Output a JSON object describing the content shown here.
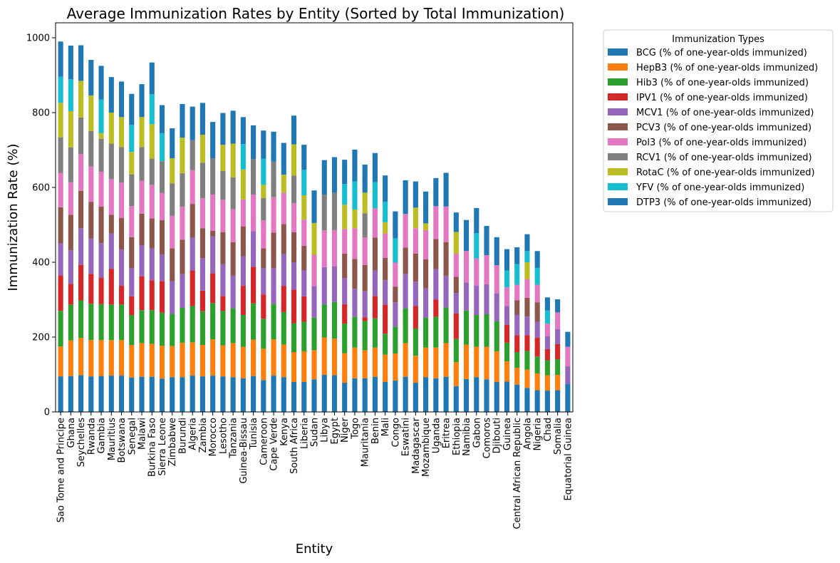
{
  "chart_data": {
    "type": "bar",
    "stacked": true,
    "title": "Average Immunization Rates by Entity (Sorted by Total Immunization)",
    "xlabel": "Entity",
    "ylabel": "Immunization Rate (%)",
    "ylim": [
      0,
      1040
    ],
    "yticks": [
      0,
      200,
      400,
      600,
      800,
      1000
    ],
    "grid": false,
    "legend": {
      "title": "Immunization Types",
      "placement": "outside-top-right"
    },
    "categories": [
      "Sao Tome and Principe",
      "Ghana",
      "Seychelles",
      "Rwanda",
      "Gambia",
      "Mauritius",
      "Botswana",
      "Senegal",
      "Malawi",
      "Burkina Faso",
      "Sierra Leone",
      "Zimbabwe",
      "Burundi",
      "Algeria",
      "Zambia",
      "Morocco",
      "Lesotho",
      "Tanzania",
      "Guinea-Bissau",
      "Tunisia",
      "Cameroon",
      "Cape Verde",
      "Kenya",
      "South Africa",
      "Liberia",
      "Sudan",
      "Libya",
      "Egypt",
      "Niger",
      "Togo",
      "Mauritania",
      "Benin",
      "Mali",
      "Congo",
      "Eswatini",
      "Madagascar",
      "Mozambique",
      "Uganda",
      "Eritrea",
      "Ethiopia",
      "Namibia",
      "Gabon",
      "Comoros",
      "Djibouti",
      "Guinea",
      "Central African Republic",
      "Angola",
      "Nigeria",
      "Chad",
      "Somalia",
      "Equatorial Guinea"
    ],
    "series": [
      {
        "name": "BCG (% of one-year-olds immunized)",
        "color": "#1f77b4",
        "values": [
          95,
          96,
          98,
          95,
          96,
          97,
          97,
          92,
          94,
          94,
          89,
          93,
          93,
          97,
          95,
          97,
          95,
          93,
          90,
          96,
          85,
          97,
          93,
          80,
          80,
          87,
          99,
          98,
          78,
          90,
          90,
          94,
          80,
          84,
          94,
          78,
          93,
          90,
          94,
          69,
          88,
          93,
          87,
          80,
          81,
          73,
          64,
          58,
          57,
          58,
          75
        ]
      },
      {
        "name": "HepB3 (% of one-year-olds immunized)",
        "color": "#ff7f0e",
        "values": [
          80,
          95,
          100,
          97,
          96,
          95,
          95,
          87,
          90,
          88,
          88,
          83,
          92,
          89,
          84,
          97,
          83,
          91,
          84,
          97,
          84,
          97,
          87,
          80,
          82,
          78,
          100,
          98,
          79,
          82,
          75,
          78,
          73,
          72,
          90,
          72,
          79,
          82,
          90,
          64,
          92,
          81,
          87,
          82,
          54,
          45,
          49,
          45,
          41,
          41,
          0
        ]
      },
      {
        "name": "Hib3 (% of one-year-olds immunized)",
        "color": "#2ca02c",
        "values": [
          95,
          96,
          100,
          97,
          96,
          95,
          95,
          80,
          88,
          90,
          88,
          86,
          93,
          97,
          90,
          97,
          92,
          93,
          85,
          97,
          80,
          95,
          87,
          77,
          79,
          87,
          88,
          98,
          79,
          82,
          78,
          78,
          56,
          72,
          93,
          73,
          80,
          82,
          95,
          62,
          91,
          85,
          87,
          80,
          50,
          42,
          50,
          45,
          40,
          42,
          0
        ]
      },
      {
        "name": "IPV1 (% of one-year-olds immunized)",
        "color": "#d62728",
        "values": [
          95,
          55,
          95,
          80,
          70,
          95,
          50,
          50,
          90,
          80,
          85,
          0,
          0,
          95,
          55,
          80,
          40,
          0,
          78,
          98,
          65,
          0,
          70,
          90,
          68,
          0,
          0,
          0,
          52,
          0,
          10,
          60,
          78,
          0,
          0,
          60,
          0,
          46,
          0,
          68,
          0,
          0,
          0,
          0,
          48,
          45,
          42,
          50,
          30,
          40,
          0
        ]
      },
      {
        "name": "MCV1 (% of one-year-olds immunized)",
        "color": "#9467bd",
        "values": [
          85,
          90,
          98,
          95,
          93,
          95,
          97,
          75,
          83,
          85,
          71,
          87,
          90,
          88,
          87,
          98,
          85,
          87,
          79,
          95,
          70,
          95,
          85,
          73,
          70,
          84,
          100,
          96,
          70,
          75,
          70,
          68,
          65,
          65,
          92,
          65,
          78,
          82,
          85,
          55,
          75,
          78,
          80,
          75,
          50,
          55,
          50,
          43,
          35,
          40,
          47
        ]
      },
      {
        "name": "PCV3 (% of one-year-olds immunized)",
        "color": "#8c564b",
        "values": [
          97,
          95,
          100,
          97,
          98,
          50,
          84,
          83,
          85,
          80,
          92,
          88,
          92,
          90,
          80,
          15,
          85,
          90,
          80,
          0,
          53,
          95,
          80,
          80,
          65,
          0,
          0,
          0,
          65,
          80,
          70,
          88,
          60,
          42,
          70,
          75,
          78,
          80,
          90,
          43,
          0,
          0,
          0,
          0,
          0,
          38,
          50,
          52,
          0,
          0,
          0
        ]
      },
      {
        "name": "Pol3 (% of one-year-olds immunized)",
        "color": "#e377c2",
        "values": [
          92,
          87,
          98,
          95,
          93,
          95,
          95,
          83,
          88,
          90,
          72,
          87,
          88,
          90,
          80,
          97,
          87,
          88,
          72,
          98,
          75,
          95,
          84,
          78,
          70,
          84,
          98,
          96,
          66,
          82,
          73,
          78,
          65,
          64,
          90,
          68,
          78,
          88,
          95,
          62,
          84,
          73,
          78,
          75,
          50,
          42,
          50,
          47,
          33,
          45,
          52
        ]
      },
      {
        "name": "RCV1 (% of one-year-olds immunized)",
        "color": "#7f7f7f",
        "values": [
          95,
          93,
          98,
          95,
          88,
          95,
          95,
          85,
          90,
          70,
          85,
          87,
          90,
          80,
          95,
          97,
          77,
          85,
          0,
          95,
          60,
          95,
          0,
          74,
          0,
          0,
          96,
          100,
          0,
          0,
          65,
          0,
          0,
          0,
          0,
          0,
          0,
          0,
          0,
          0,
          0,
          0,
          0,
          0,
          0,
          0,
          0,
          0,
          0,
          0,
          0
        ]
      },
      {
        "name": "RotaC (% of one-year-olds immunized)",
        "color": "#bcbd22",
        "values": [
          92,
          97,
          98,
          95,
          15,
          83,
          80,
          60,
          80,
          92,
          0,
          67,
          95,
          0,
          75,
          0,
          70,
          90,
          80,
          0,
          35,
          0,
          48,
          83,
          65,
          85,
          0,
          0,
          65,
          50,
          55,
          0,
          30,
          0,
          0,
          55,
          18,
          0,
          0,
          58,
          0,
          0,
          0,
          0,
          0,
          0,
          45,
          0,
          0,
          0,
          0
        ]
      },
      {
        "name": "YFV (% of one-year-olds immunized)",
        "color": "#17becf",
        "values": [
          70,
          85,
          0,
          0,
          90,
          0,
          0,
          72,
          0,
          80,
          75,
          0,
          0,
          0,
          0,
          0,
          0,
          0,
          68,
          0,
          70,
          0,
          0,
          0,
          68,
          0,
          0,
          0,
          55,
          75,
          0,
          70,
          55,
          65,
          0,
          0,
          0,
          0,
          0,
          0,
          0,
          68,
          0,
          0,
          45,
          55,
          30,
          45,
          35,
          0,
          0
        ]
      },
      {
        "name": "DTP3 (% of one-year-olds immunized)",
        "color": "#1f77b4",
        "values": [
          94,
          90,
          95,
          95,
          90,
          95,
          95,
          83,
          88,
          85,
          75,
          80,
          90,
          90,
          85,
          97,
          85,
          88,
          72,
          90,
          75,
          80,
          85,
          77,
          67,
          87,
          92,
          95,
          65,
          85,
          75,
          78,
          70,
          72,
          90,
          70,
          85,
          75,
          90,
          52,
          83,
          67,
          78,
          75,
          57,
          45,
          45,
          45,
          35,
          35,
          40
        ]
      }
    ]
  }
}
